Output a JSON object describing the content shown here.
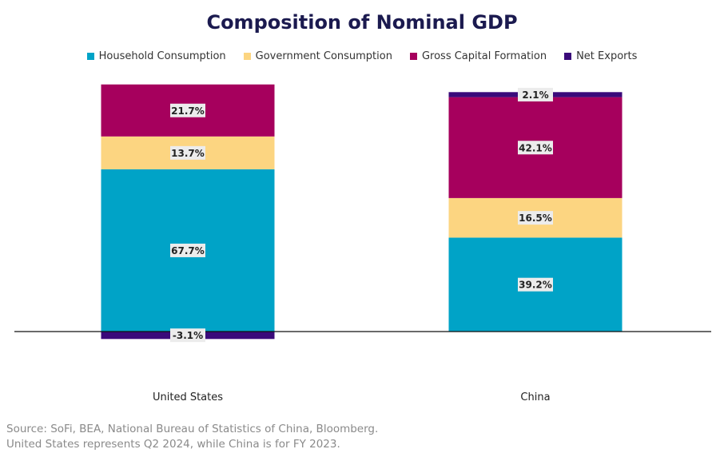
{
  "chart_data": {
    "type": "bar",
    "stacked": true,
    "title": "Composition of Nominal GDP",
    "categories": [
      "United States",
      "China"
    ],
    "series": [
      {
        "name": "Household Consumption",
        "color": "#00a3c7",
        "values": [
          67.7,
          39.2
        ],
        "labels": [
          "67.7%",
          "39.2%"
        ]
      },
      {
        "name": "Government Consumption",
        "color": "#fcd581",
        "values": [
          13.7,
          16.5
        ],
        "labels": [
          "13.7%",
          "16.5%"
        ]
      },
      {
        "name": "Gross Capital Formation",
        "color": "#a6005d",
        "values": [
          21.7,
          42.1
        ],
        "labels": [
          "21.7%",
          "42.1%"
        ]
      },
      {
        "name": "Net Exports",
        "color": "#3a0a7a",
        "values": [
          -3.1,
          2.1
        ],
        "labels": [
          "-3.1%",
          "2.1%"
        ]
      }
    ],
    "ylim": [
      -3.1,
      105
    ],
    "grid": false,
    "legend_position": "top-center",
    "xlabel": "",
    "ylabel": ""
  },
  "footnote": {
    "source": "Source: SoFi, BEA, National Bureau of Statistics of China, Bloomberg.",
    "note": "United States represents Q2 2024, while China is for FY 2023."
  }
}
